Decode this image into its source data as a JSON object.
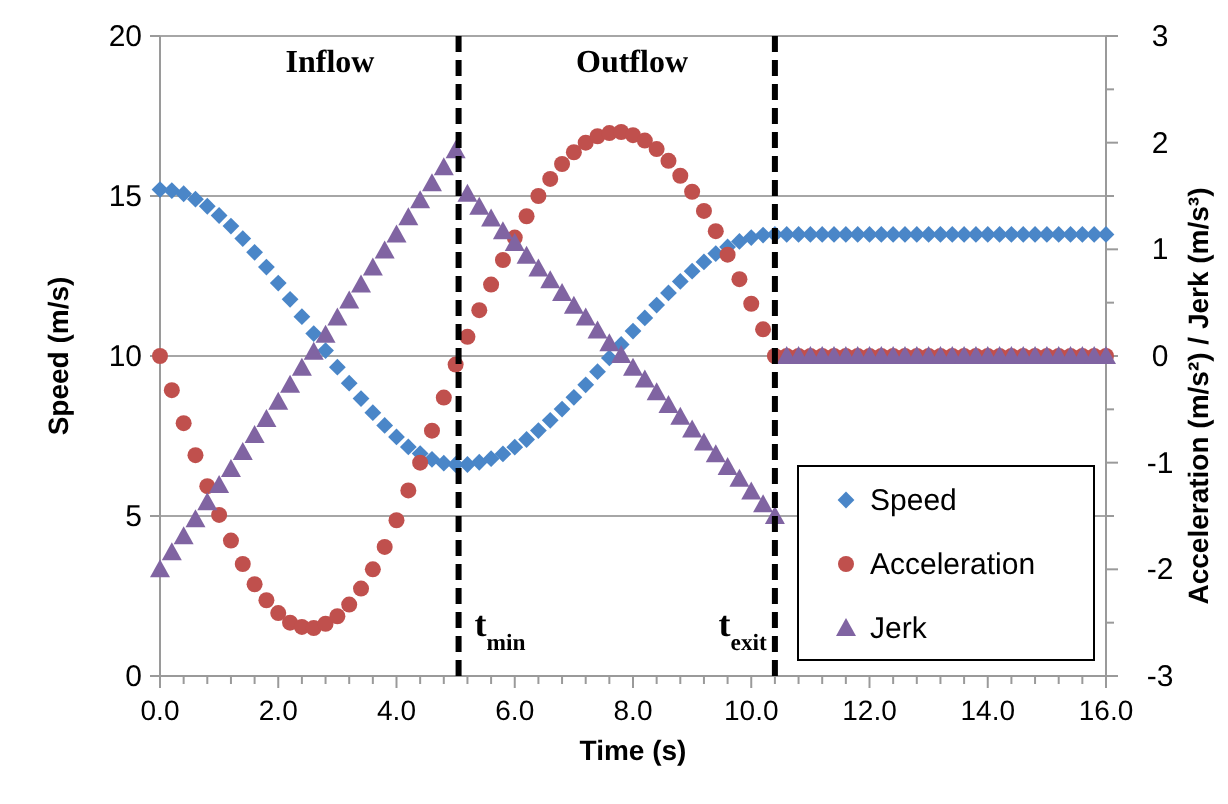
{
  "chart_data": {
    "type": "scatter",
    "xlabel": "Time (s)",
    "ylabel": "Speed (m/s)",
    "y2label": "Acceleration (m/s²) / Jerk (m/s³)",
    "x": [
      0,
      0.2,
      0.4,
      0.6,
      0.8,
      1.0,
      1.2,
      1.4,
      1.6,
      1.8,
      2.0,
      2.2,
      2.4,
      2.6,
      2.8,
      3.0,
      3.2,
      3.4,
      3.6,
      3.8,
      4.0,
      4.2,
      4.4,
      4.6,
      4.8,
      5.0,
      5.2,
      5.4,
      5.6,
      5.8,
      6.0,
      6.2,
      6.4,
      6.6,
      6.8,
      7.0,
      7.2,
      7.4,
      7.6,
      7.8,
      8.0,
      8.2,
      8.4,
      8.6,
      8.8,
      9.0,
      9.2,
      9.4,
      9.6,
      9.8,
      10.0,
      10.2,
      10.4,
      10.6,
      10.8,
      11.0,
      11.2,
      11.4,
      11.6,
      11.8,
      12.0,
      12.2,
      12.4,
      12.6,
      12.8,
      13.0,
      13.2,
      13.4,
      13.6,
      13.8,
      14.0,
      14.2,
      14.4,
      14.6,
      14.8,
      15.0,
      15.2,
      15.4,
      15.6,
      15.8,
      16.0
    ],
    "series": [
      {
        "name": "Speed",
        "color": "#4a86c8",
        "marker": "diamond",
        "values": [
          15.2,
          15.17,
          15.07,
          14.9,
          14.68,
          14.39,
          14.06,
          13.67,
          13.24,
          12.78,
          12.28,
          11.77,
          11.23,
          10.7,
          10.17,
          9.65,
          9.15,
          8.67,
          8.23,
          7.83,
          7.47,
          7.16,
          6.95,
          6.77,
          6.65,
          6.61,
          6.61,
          6.68,
          6.79,
          6.94,
          7.15,
          7.39,
          7.67,
          7.99,
          8.34,
          8.71,
          9.1,
          9.51,
          9.94,
          10.36,
          10.78,
          11.19,
          11.59,
          11.97,
          12.33,
          12.65,
          12.94,
          13.2,
          13.41,
          13.58,
          13.7,
          13.78,
          13.8,
          13.8,
          13.8,
          13.8,
          13.8,
          13.8,
          13.8,
          13.8,
          13.8,
          13.8,
          13.8,
          13.8,
          13.8,
          13.8,
          13.8,
          13.8,
          13.8,
          13.8,
          13.8,
          13.8,
          13.8,
          13.8,
          13.8,
          13.8,
          13.8,
          13.8,
          13.8,
          13.8,
          13.8
        ]
      },
      {
        "name": "Acceleration",
        "color": "#c0504d",
        "marker": "circle",
        "axis": "y2",
        "values": [
          0,
          -0.32,
          -0.63,
          -0.93,
          -1.22,
          -1.49,
          -1.73,
          -1.95,
          -2.14,
          -2.29,
          -2.41,
          -2.5,
          -2.54,
          -2.55,
          -2.51,
          -2.44,
          -2.33,
          -2.18,
          -2.0,
          -1.79,
          -1.54,
          -1.26,
          -1.0,
          -0.7,
          -0.39,
          -0.08,
          0.18,
          0.43,
          0.67,
          0.9,
          1.11,
          1.31,
          1.5,
          1.66,
          1.8,
          1.91,
          2.0,
          2.06,
          2.09,
          2.1,
          2.07,
          2.02,
          1.94,
          1.83,
          1.69,
          1.54,
          1.36,
          1.17,
          0.95,
          0.72,
          0.49,
          0.25,
          0,
          0,
          0,
          0,
          0,
          0,
          0,
          0,
          0,
          0,
          0,
          0,
          0,
          0,
          0,
          0,
          0,
          0,
          0,
          0,
          0,
          0,
          0,
          0,
          0,
          0,
          0,
          0,
          0
        ]
      },
      {
        "name": "Jerk",
        "color": "#8064a2",
        "marker": "triangle",
        "axis": "y2",
        "values": [
          -2.0,
          -1.84,
          -1.69,
          -1.53,
          -1.37,
          -1.21,
          -1.06,
          -0.9,
          -0.74,
          -0.59,
          -0.43,
          -0.27,
          -0.11,
          0.04,
          0.2,
          0.36,
          0.52,
          0.67,
          0.83,
          0.99,
          1.14,
          1.3,
          1.46,
          1.62,
          1.77,
          1.93,
          1.52,
          1.4,
          1.29,
          1.17,
          1.06,
          0.94,
          0.82,
          0.71,
          0.59,
          0.47,
          0.36,
          0.24,
          0.12,
          0.01,
          -0.11,
          -0.22,
          -0.34,
          -0.46,
          -0.57,
          -0.69,
          -0.81,
          -0.92,
          -1.04,
          -1.15,
          -1.27,
          -1.39,
          -1.5,
          0,
          0,
          0,
          0,
          0,
          0,
          0,
          0,
          0,
          0,
          0,
          0,
          0,
          0,
          0,
          0,
          0,
          0,
          0,
          0,
          0,
          0,
          0,
          0,
          0,
          0,
          0,
          0
        ]
      }
    ],
    "xlim": [
      0,
      16
    ],
    "xticks": [
      {
        "value": 0,
        "label": "0.0"
      },
      {
        "value": 0.4,
        "label": null
      },
      {
        "value": 0.8,
        "label": null
      },
      {
        "value": 1.2,
        "label": null
      },
      {
        "value": 1.6,
        "label": null
      },
      {
        "value": 2,
        "label": "2.0"
      },
      {
        "value": 2.4,
        "label": null
      },
      {
        "value": 2.8,
        "label": null
      },
      {
        "value": 3.2,
        "label": null
      },
      {
        "value": 3.6,
        "label": null
      },
      {
        "value": 4,
        "label": "4.0"
      },
      {
        "value": 4.4,
        "label": null
      },
      {
        "value": 4.8,
        "label": null
      },
      {
        "value": 5.2,
        "label": null
      },
      {
        "value": 5.6,
        "label": null
      },
      {
        "value": 6,
        "label": "6.0"
      },
      {
        "value": 6.4,
        "label": null
      },
      {
        "value": 6.8,
        "label": null
      },
      {
        "value": 7.2,
        "label": null
      },
      {
        "value": 7.6,
        "label": null
      },
      {
        "value": 8,
        "label": "8.0"
      },
      {
        "value": 8.4,
        "label": null
      },
      {
        "value": 8.8,
        "label": null
      },
      {
        "value": 9.2,
        "label": null
      },
      {
        "value": 9.6,
        "label": null
      },
      {
        "value": 10,
        "label": "10.0"
      },
      {
        "value": 10.4,
        "label": null
      },
      {
        "value": 10.8,
        "label": null
      },
      {
        "value": 11.2,
        "label": null
      },
      {
        "value": 11.6,
        "label": null
      },
      {
        "value": 12,
        "label": "12.0"
      },
      {
        "value": 12.4,
        "label": null
      },
      {
        "value": 12.8,
        "label": null
      },
      {
        "value": 13.2,
        "label": null
      },
      {
        "value": 13.6,
        "label": null
      },
      {
        "value": 14,
        "label": "14.0"
      },
      {
        "value": 14.4,
        "label": null
      },
      {
        "value": 14.8,
        "label": null
      },
      {
        "value": 15.2,
        "label": null
      },
      {
        "value": 15.6,
        "label": null
      },
      {
        "value": 16,
        "label": "16.0"
      }
    ],
    "ylim": [
      0,
      20
    ],
    "yticks": [
      0,
      5,
      10,
      15,
      20
    ],
    "y2lim": [
      -3,
      3
    ],
    "y2ticks": [
      -3,
      {
        "value": -2.5,
        "label": null
      },
      -2,
      {
        "value": -1.5,
        "label": null
      },
      -1,
      {
        "value": -0.5,
        "label": null
      },
      0,
      {
        "value": 0.5,
        "label": null
      },
      1,
      {
        "value": 1.5,
        "label": null
      },
      2,
      {
        "value": 2.5,
        "label": null
      },
      3
    ],
    "grid": "y",
    "legend": "bottom right",
    "ref_lines": [
      {
        "axis": "x",
        "value": 5.05,
        "label": "t$_{min}$",
        "color": "#000000",
        "line_style": "dashed"
      },
      {
        "axis": "x",
        "value": 10.4,
        "label": "t$_{exit}$",
        "color": "#000000",
        "line_style": "dashed"
      }
    ],
    "annotations": [
      "Inflow",
      "Outflow"
    ]
  }
}
